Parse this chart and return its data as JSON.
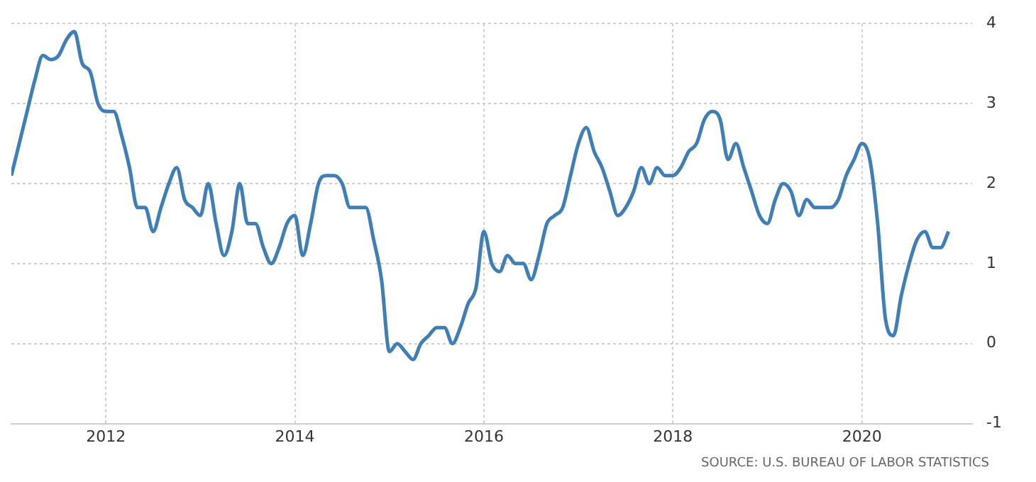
{
  "chart_data": {
    "type": "line",
    "xlim": [
      "2011-01",
      "2021-03"
    ],
    "xticks": [
      "2012",
      "2014",
      "2016",
      "2018",
      "2020"
    ],
    "ylim": [
      -1,
      4
    ],
    "yticks": [
      -1,
      0,
      1,
      2,
      3,
      4
    ],
    "grid": true,
    "legend": false,
    "marker": "none",
    "line_style": "solid",
    "annotations": [
      "SOURCE: U.S. BUREAU OF LABOR STATISTICS"
    ],
    "series": [
      {
        "color": "#3f7fb5",
        "x": [
          "2011-01",
          "2011-02",
          "2011-03",
          "2011-04",
          "2011-05",
          "2011-06",
          "2011-07",
          "2011-08",
          "2011-09",
          "2011-10",
          "2011-11",
          "2011-12",
          "2012-01",
          "2012-02",
          "2012-03",
          "2012-04",
          "2012-05",
          "2012-06",
          "2012-07",
          "2012-08",
          "2012-09",
          "2012-10",
          "2012-11",
          "2012-12",
          "2013-01",
          "2013-02",
          "2013-03",
          "2013-04",
          "2013-05",
          "2013-06",
          "2013-07",
          "2013-08",
          "2013-09",
          "2013-10",
          "2013-11",
          "2013-12",
          "2014-01",
          "2014-02",
          "2014-03",
          "2014-04",
          "2014-05",
          "2014-06",
          "2014-07",
          "2014-08",
          "2014-09",
          "2014-10",
          "2014-11",
          "2014-12",
          "2015-01",
          "2015-02",
          "2015-03",
          "2015-04",
          "2015-05",
          "2015-06",
          "2015-07",
          "2015-08",
          "2015-09",
          "2015-10",
          "2015-11",
          "2015-12",
          "2016-01",
          "2016-02",
          "2016-03",
          "2016-04",
          "2016-05",
          "2016-06",
          "2016-07",
          "2016-08",
          "2016-09",
          "2016-10",
          "2016-11",
          "2016-12",
          "2017-01",
          "2017-02",
          "2017-03",
          "2017-04",
          "2017-05",
          "2017-06",
          "2017-07",
          "2017-08",
          "2017-09",
          "2017-10",
          "2017-11",
          "2017-12",
          "2018-01",
          "2018-02",
          "2018-03",
          "2018-04",
          "2018-05",
          "2018-06",
          "2018-07",
          "2018-08",
          "2018-09",
          "2018-10",
          "2018-11",
          "2018-12",
          "2019-01",
          "2019-02",
          "2019-03",
          "2019-04",
          "2019-05",
          "2019-06",
          "2019-07",
          "2019-08",
          "2019-09",
          "2019-10",
          "2019-11",
          "2019-12",
          "2020-01",
          "2020-02",
          "2020-03",
          "2020-04",
          "2020-05",
          "2020-06",
          "2020-07",
          "2020-08",
          "2020-09",
          "2020-10",
          "2020-11",
          "2020-12"
        ],
        "values": [
          2.1,
          2.5,
          2.9,
          3.3,
          3.6,
          3.55,
          3.6,
          3.8,
          3.9,
          3.5,
          3.4,
          3.0,
          2.9,
          2.9,
          2.6,
          2.2,
          1.7,
          1.7,
          1.4,
          1.7,
          2.0,
          2.2,
          1.8,
          1.7,
          1.6,
          2.0,
          1.5,
          1.1,
          1.4,
          2.0,
          1.5,
          1.5,
          1.2,
          1.0,
          1.2,
          1.5,
          1.6,
          1.1,
          1.5,
          2.0,
          2.1,
          2.1,
          2.0,
          1.7,
          1.7,
          1.7,
          1.3,
          0.8,
          -0.1,
          0.0,
          -0.1,
          -0.2,
          0.0,
          0.1,
          0.2,
          0.2,
          0.0,
          0.2,
          0.5,
          0.7,
          1.4,
          1.0,
          0.9,
          1.1,
          1.0,
          1.0,
          0.8,
          1.1,
          1.5,
          1.6,
          1.7,
          2.1,
          2.5,
          2.7,
          2.4,
          2.2,
          1.9,
          1.6,
          1.7,
          1.9,
          2.2,
          2.0,
          2.2,
          2.1,
          2.1,
          2.2,
          2.4,
          2.5,
          2.8,
          2.9,
          2.8,
          2.3,
          2.5,
          2.2,
          1.9,
          1.6,
          1.5,
          1.8,
          2.0,
          1.9,
          1.6,
          1.8,
          1.7,
          1.7,
          1.7,
          1.8,
          2.1,
          2.3,
          2.5,
          2.3,
          1.5,
          0.3,
          0.1,
          0.6,
          1.0,
          1.3,
          1.4,
          1.2,
          1.2,
          1.4
        ]
      }
    ]
  }
}
